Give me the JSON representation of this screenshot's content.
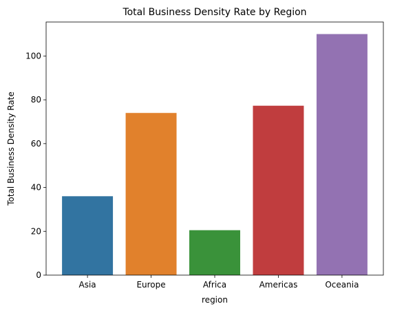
{
  "chart_data": {
    "type": "bar",
    "title": "Total Business Density Rate by Region",
    "xlabel": "region",
    "ylabel": "Total Business Density Rate",
    "categories": [
      "Asia",
      "Europe",
      "Africa",
      "Americas",
      "Oceania"
    ],
    "values": [
      36,
      74,
      20.5,
      77.3,
      110
    ],
    "colors": [
      "#3274a1",
      "#e1812c",
      "#3a923a",
      "#c03d3e",
      "#9372b2"
    ],
    "ylim": [
      0,
      115.5
    ],
    "yticks": [
      0,
      20,
      40,
      60,
      80,
      100
    ],
    "grid": false,
    "legend": "none"
  }
}
